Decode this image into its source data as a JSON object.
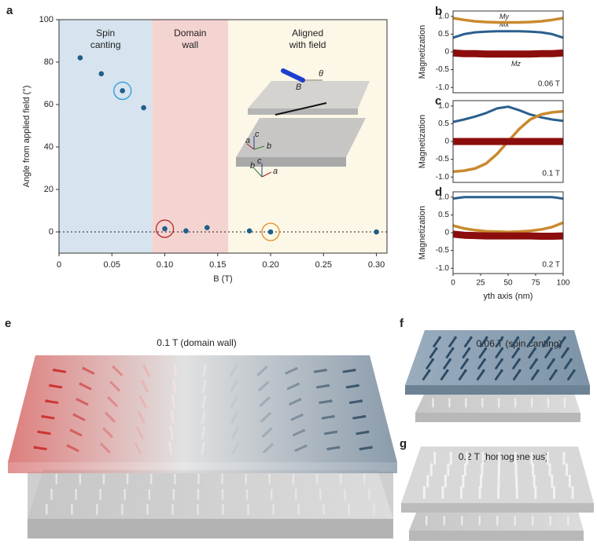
{
  "chart_data": [
    {
      "panel": "a",
      "type": "scatter",
      "xlabel": "B (T)",
      "ylabel": "Angle from applied field (°)",
      "x": [
        0.02,
        0.04,
        0.06,
        0.08,
        0.1,
        0.12,
        0.14,
        0.18,
        0.2,
        0.3
      ],
      "values": [
        82,
        74.5,
        66.5,
        58.5,
        1.5,
        0.5,
        2,
        0.5,
        0,
        0
      ],
      "color": "#1f5f8b",
      "xlim": [
        0,
        0.31
      ],
      "ylim": [
        -10,
        100
      ],
      "xticks": [
        0,
        0.05,
        {
          "value": 0.1,
          "label": "0.10"
        },
        0.15,
        {
          "value": 0.2,
          "label": "0.20"
        },
        0.25,
        {
          "value": 0.3,
          "label": "0.30"
        }
      ],
      "yticks": [
        0,
        20,
        40,
        60,
        80,
        100
      ],
      "reference_line": 0,
      "regions": [
        {
          "label": [
            "Spin",
            "canting"
          ],
          "range": [
            0,
            0.088
          ],
          "color": "#d7e4ef",
          "label_color": "#2c6fa0"
        },
        {
          "label": [
            "Domain",
            "wall"
          ],
          "range": [
            0.088,
            0.16
          ],
          "color": "#f4d4d1",
          "label_color": "#b32b2b"
        },
        {
          "label": [
            "Aligned",
            "with field"
          ],
          "range": [
            0.16,
            0.31
          ],
          "color": "#fdf7e7",
          "label_color": "#e8a32a"
        }
      ],
      "highlights": [
        {
          "index": 2,
          "color": "#2a9ad6"
        },
        {
          "index": 4,
          "color": "#b32b2b"
        },
        {
          "index": 8,
          "color": "#e38a1e"
        }
      ],
      "inset": {
        "field": "B",
        "angle": "θ",
        "top_axes": [
          "c",
          "a",
          "b"
        ],
        "bottom_axes": [
          "c",
          "b",
          "a"
        ]
      }
    },
    {
      "panel": "b",
      "type": "line",
      "ylabel": "Magnetization",
      "annotation": "0.06 T",
      "annotation_color": "#2c6fa0",
      "x": [
        0,
        10,
        20,
        30,
        40,
        50,
        60,
        70,
        80,
        90,
        100
      ],
      "xlim": [
        0,
        100
      ],
      "ylim": [
        -1.15,
        1.15
      ],
      "yticks": [
        {
          "value": 1,
          "label": "1.0"
        },
        0.5,
        0,
        -0.5,
        {
          "value": -1,
          "label": "-1.0"
        }
      ],
      "series": [
        {
          "name": "Mx",
          "color": "#2b5f8e",
          "values": [
            0.4,
            0.5,
            0.55,
            0.57,
            0.58,
            0.58,
            0.58,
            0.57,
            0.55,
            0.5,
            0.4
          ]
        },
        {
          "name": "My",
          "color": "#c98a2e",
          "values": [
            0.95,
            0.9,
            0.86,
            0.84,
            0.83,
            0.83,
            0.83,
            0.84,
            0.86,
            0.9,
            0.95
          ]
        },
        {
          "name": "Mz",
          "color": "#8b0d0d",
          "values": [
            -0.03,
            -0.05,
            -0.05,
            -0.06,
            -0.06,
            -0.06,
            -0.06,
            -0.06,
            -0.05,
            -0.05,
            -0.03
          ]
        }
      ]
    },
    {
      "panel": "c",
      "type": "line",
      "ylabel": "Magnetization",
      "annotation": "0.1 T",
      "annotation_color": "#b32b2b",
      "x": [
        0,
        10,
        20,
        30,
        40,
        50,
        60,
        70,
        80,
        90,
        100
      ],
      "xlim": [
        0,
        100
      ],
      "ylim": [
        -1.15,
        1.15
      ],
      "yticks": [
        {
          "value": 1,
          "label": "1.0"
        },
        0.5,
        0,
        -0.5,
        {
          "value": -1,
          "label": "-1.0"
        }
      ],
      "series": [
        {
          "color": "#2b5f8e",
          "values": [
            0.55,
            0.62,
            0.7,
            0.8,
            0.93,
            0.98,
            0.88,
            0.76,
            0.68,
            0.62,
            0.58
          ]
        },
        {
          "color": "#c98a2e",
          "values": [
            -0.85,
            -0.82,
            -0.76,
            -0.62,
            -0.35,
            0,
            0.35,
            0.62,
            0.76,
            0.82,
            0.85
          ]
        },
        {
          "color": "#8b0d0d",
          "values": [
            0,
            0,
            0,
            0,
            0,
            0,
            0,
            0,
            0,
            0,
            0
          ]
        }
      ]
    },
    {
      "panel": "d",
      "type": "line",
      "ylabel": "Magnetization",
      "xlabel": "yth axis (nm)",
      "annotation": "0.2 T",
      "annotation_color": "#e8a32a",
      "x": [
        0,
        10,
        20,
        30,
        40,
        50,
        60,
        70,
        80,
        90,
        100
      ],
      "xlim": [
        0,
        100
      ],
      "ylim": [
        -1.15,
        1.15
      ],
      "xticks": [
        0,
        25,
        50,
        75,
        100
      ],
      "yticks": [
        {
          "value": 1,
          "label": "1.0"
        },
        0.5,
        0,
        -0.5,
        {
          "value": -1,
          "label": "-1.0"
        }
      ],
      "series": [
        {
          "color": "#2b5f8e",
          "values": [
            0.96,
            1,
            1,
            1,
            1,
            1,
            1,
            1,
            1,
            1,
            0.96
          ]
        },
        {
          "color": "#c98a2e",
          "values": [
            0.2,
            0.12,
            0.07,
            0.04,
            0.03,
            0.02,
            0.03,
            0.05,
            0.09,
            0.16,
            0.28
          ]
        },
        {
          "color": "#8b0d0d",
          "values": [
            -0.04,
            -0.07,
            -0.08,
            -0.09,
            -0.09,
            -0.09,
            -0.09,
            -0.09,
            -0.1,
            -0.1,
            -0.09
          ]
        }
      ]
    }
  ],
  "illustrations": [
    {
      "panel": "e",
      "caption": "0.1 T (domain wall)",
      "caption_color": "#c0392b"
    },
    {
      "panel": "f",
      "caption": "0.06 T (spin canting)",
      "caption_color": "#2c6fa0"
    },
    {
      "panel": "g",
      "caption": "0.2 T (homogeneous)",
      "caption_color": "#e8a32a"
    }
  ]
}
